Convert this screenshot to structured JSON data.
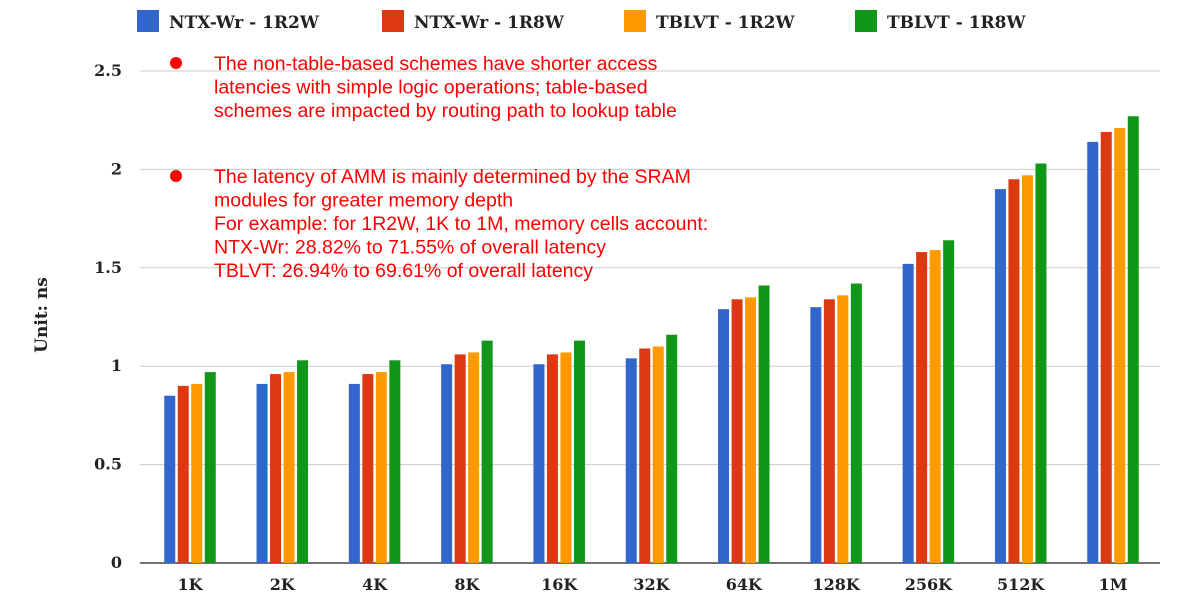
{
  "chart_data": {
    "type": "bar",
    "title": "",
    "xlabel": "",
    "ylabel": "Unit: ns",
    "ylim": [
      0,
      2.5
    ],
    "yticks": [
      "0",
      "0.5",
      "1",
      "1.5",
      "2",
      "2.5"
    ],
    "grid": true,
    "legend_position": "top",
    "categories": [
      "1K",
      "2K",
      "4K",
      "8K",
      "16K",
      "32K",
      "64K",
      "128K",
      "256K",
      "512K",
      "1M"
    ],
    "series": [
      {
        "name": "NTX-Wr - 1R2W",
        "color": "#3366cc",
        "values": [
          0.85,
          0.91,
          0.91,
          1.01,
          1.01,
          1.04,
          1.29,
          1.3,
          1.52,
          1.9,
          2.14
        ]
      },
      {
        "name": "NTX-Wr - 1R8W",
        "color": "#dc3912",
        "values": [
          0.9,
          0.96,
          0.96,
          1.06,
          1.06,
          1.09,
          1.34,
          1.34,
          1.58,
          1.95,
          2.19
        ]
      },
      {
        "name": "TBLVT - 1R2W",
        "color": "#ff9900",
        "values": [
          0.91,
          0.97,
          0.97,
          1.07,
          1.07,
          1.1,
          1.35,
          1.36,
          1.59,
          1.97,
          2.21
        ]
      },
      {
        "name": "TBLVT - 1R8W",
        "color": "#109618",
        "values": [
          0.97,
          1.03,
          1.03,
          1.13,
          1.13,
          1.16,
          1.41,
          1.42,
          1.64,
          2.03,
          2.27
        ]
      }
    ],
    "annotations": [
      {
        "bullet": true,
        "lines": [
          "The non-table-based schemes have shorter access",
          "latencies with simple logic operations; table-based",
          "schemes are impacted by routing path to lookup table"
        ]
      },
      {
        "bullet": true,
        "lines": [
          "The latency of AMM is mainly determined by the SRAM",
          "modules for greater memory depth",
          "For example: for 1R2W, 1K to 1M, memory cells account:",
          "NTX-Wr: 28.82% to 71.55% of overall latency",
          "TBLVT: 26.94% to 69.61% of overall latency"
        ]
      }
    ]
  }
}
